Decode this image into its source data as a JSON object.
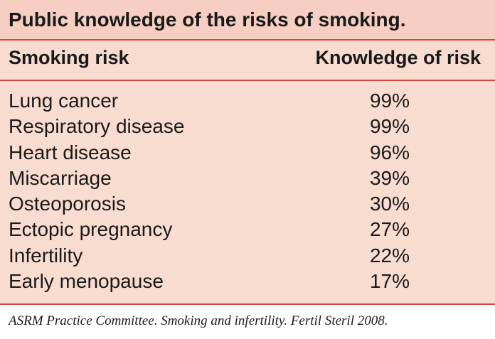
{
  "table": {
    "title": "Public knowledge of the risks of smoking.",
    "headers": {
      "risk": "Smoking risk",
      "knowledge": "Knowledge of risk"
    },
    "rows": [
      {
        "risk": "Lung cancer",
        "knowledge": "99%"
      },
      {
        "risk": "Respiratory disease",
        "knowledge": "99%"
      },
      {
        "risk": "Heart disease",
        "knowledge": "96%"
      },
      {
        "risk": "Miscarriage",
        "knowledge": "39%"
      },
      {
        "risk": "Osteoporosis",
        "knowledge": "30%"
      },
      {
        "risk": "Ectopic pregnancy",
        "knowledge": "27%"
      },
      {
        "risk": "Infertility",
        "knowledge": "22%"
      },
      {
        "risk": "Early menopause",
        "knowledge": "17%"
      }
    ],
    "colors": {
      "background": "#f9dcd0",
      "title_band": "#f7cfc2",
      "rule": "#d9433f"
    }
  },
  "citation": "ASRM Practice Committee. Smoking and infertility. Fertil Steril 2008."
}
